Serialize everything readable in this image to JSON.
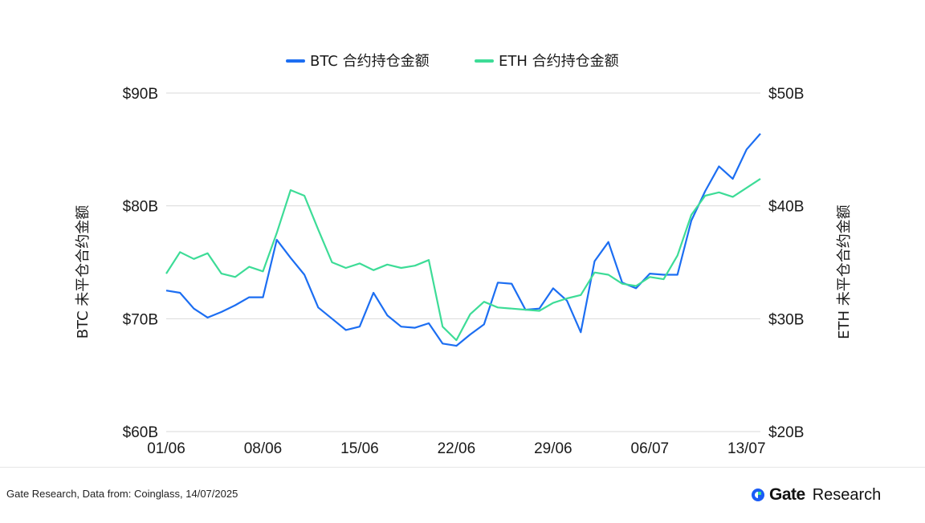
{
  "chart_data": {
    "type": "line",
    "title": "",
    "categories_shown": [
      "01/06",
      "08/06",
      "15/06",
      "22/06",
      "29/06",
      "06/07",
      "13/07"
    ],
    "x": [
      "01/06",
      "02/06",
      "03/06",
      "04/06",
      "05/06",
      "06/06",
      "07/06",
      "08/06",
      "09/06",
      "10/06",
      "11/06",
      "12/06",
      "13/06",
      "14/06",
      "15/06",
      "16/06",
      "17/06",
      "18/06",
      "19/06",
      "20/06",
      "21/06",
      "22/06",
      "23/06",
      "24/06",
      "25/06",
      "26/06",
      "27/06",
      "28/06",
      "29/06",
      "30/06",
      "01/07",
      "02/07",
      "03/07",
      "04/07",
      "05/07",
      "06/07",
      "07/07",
      "08/07",
      "09/07",
      "10/07",
      "11/07",
      "12/07",
      "13/07",
      "14/07"
    ],
    "series": [
      {
        "name": "BTC 合约持仓金额",
        "axis": "left",
        "color": "#1c6ef2",
        "values": [
          72.5,
          72.3,
          70.9,
          70.1,
          70.6,
          71.2,
          71.9,
          71.9,
          77.0,
          75.4,
          73.9,
          71.0,
          70.0,
          69.0,
          69.3,
          72.3,
          70.3,
          69.3,
          69.2,
          69.6,
          67.8,
          67.6,
          68.6,
          69.5,
          73.2,
          73.1,
          70.8,
          70.9,
          72.7,
          71.6,
          68.8,
          75.1,
          76.8,
          73.2,
          72.7,
          74.0,
          73.9,
          73.9,
          78.7,
          81.3,
          83.5,
          82.4,
          85.0,
          86.4
        ]
      },
      {
        "name": "ETH 合约持仓金额",
        "axis": "right",
        "color": "#3ddc97",
        "values": [
          34.0,
          35.9,
          35.3,
          35.8,
          34.0,
          33.7,
          34.6,
          34.2,
          37.6,
          41.4,
          40.9,
          37.9,
          35.0,
          34.5,
          34.9,
          34.3,
          34.8,
          34.5,
          34.7,
          35.2,
          29.3,
          28.1,
          30.4,
          31.5,
          31.0,
          30.9,
          30.8,
          30.7,
          31.4,
          31.8,
          32.1,
          34.1,
          33.9,
          33.1,
          32.9,
          33.7,
          33.5,
          35.6,
          39.2,
          40.9,
          41.2,
          40.8,
          41.6,
          42.4
        ]
      }
    ],
    "y_left": {
      "label": "BTC 未平仓合约金额",
      "ylim": [
        60,
        90
      ],
      "ticks": [
        "$60B",
        "$70B",
        "$80B",
        "$90B"
      ],
      "tick_values": [
        60,
        70,
        80,
        90
      ]
    },
    "y_right": {
      "label": "ETH 未平仓合约金额",
      "ylim": [
        20,
        50
      ],
      "ticks": [
        "$20B",
        "$30B",
        "$40B",
        "$50B"
      ],
      "tick_values": [
        20,
        30,
        40,
        50
      ]
    },
    "grid": true,
    "legend_position": "top-center"
  },
  "footer": {
    "source": "Gate Research, Data from: Coinglass, 14/07/2025",
    "brand_name": "Gate",
    "brand_suffix": "Research"
  },
  "colors": {
    "btc": "#1c6ef2",
    "eth": "#3ddc97",
    "brand": "#1a5cf6",
    "grid": "#d9d9d9"
  },
  "icons": {
    "brand_logo": "gate-logo-icon"
  }
}
